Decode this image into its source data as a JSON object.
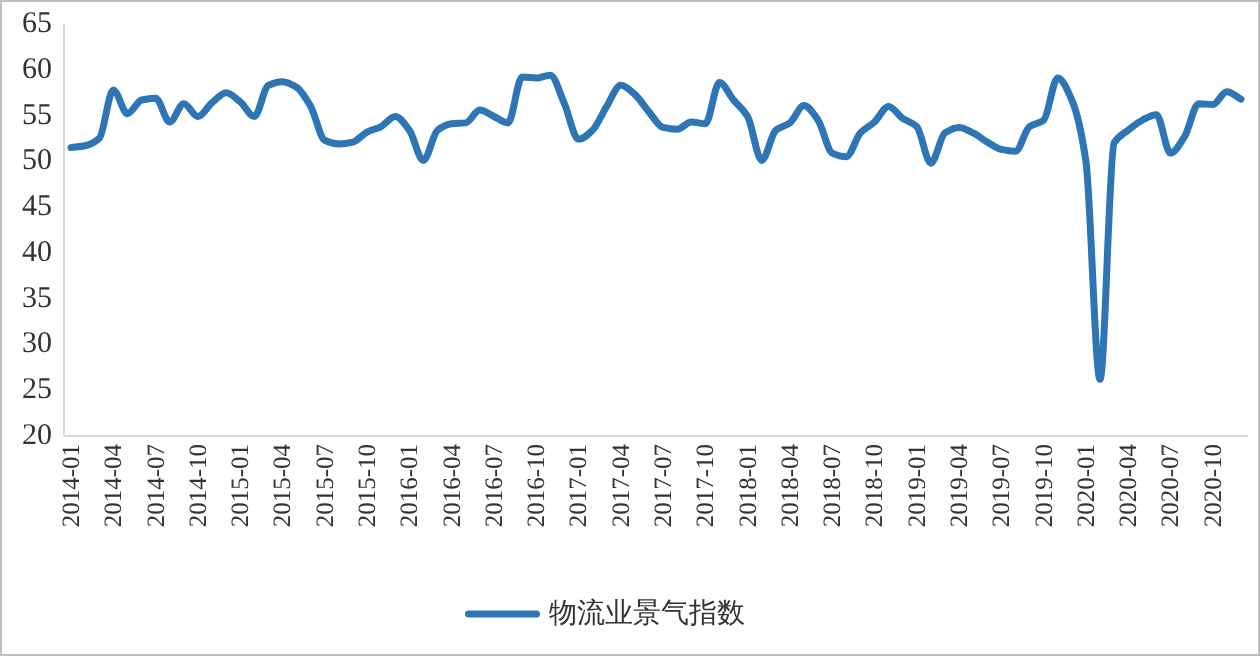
{
  "chart_data": {
    "type": "line",
    "categories": [
      "2014-01",
      null,
      null,
      "2014-04",
      null,
      null,
      "2014-07",
      null,
      null,
      "2014-10",
      null,
      null,
      "2015-01",
      null,
      null,
      "2015-04",
      null,
      null,
      "2015-07",
      null,
      null,
      "2015-10",
      null,
      null,
      "2016-01",
      null,
      null,
      "2016-04",
      null,
      null,
      "2016-07",
      null,
      null,
      "2016-10",
      null,
      null,
      "2017-01",
      null,
      null,
      "2017-04",
      null,
      null,
      "2017-07",
      null,
      null,
      "2017-10",
      null,
      null,
      "2018-01",
      null,
      null,
      "2018-04",
      null,
      null,
      "2018-07",
      null,
      null,
      "2018-10",
      null,
      null,
      "2019-01",
      null,
      null,
      "2019-04",
      null,
      null,
      "2019-07",
      null,
      null,
      "2019-10",
      null,
      null,
      "2020-01",
      null,
      null,
      "2020-04",
      null,
      null,
      "2020-07",
      null,
      null,
      "2020-10",
      null,
      null
    ],
    "series": [
      {
        "name": "物流业景气指数",
        "color": "#2e75b6",
        "values": [
          51.5,
          51.7,
          52.5,
          57.8,
          55.2,
          56.7,
          56.9,
          54.3,
          56.3,
          54.9,
          56.4,
          57.5,
          56.5,
          54.9,
          58.3,
          58.7,
          58.1,
          56.0,
          52.3,
          51.9,
          52.1,
          53.2,
          53.8,
          54.9,
          53.4,
          50.1,
          53.4,
          54.1,
          54.2,
          55.6,
          54.9,
          54.2,
          59.2,
          59.1,
          59.4,
          56.3,
          52.4,
          53.4,
          56.0,
          58.3,
          57.3,
          55.4,
          53.7,
          53.5,
          54.3,
          54.1,
          58.6,
          56.7,
          54.9,
          50.1,
          53.4,
          54.2,
          56.1,
          54.5,
          50.9,
          50.5,
          53.1,
          54.3,
          56.0,
          54.7,
          53.8,
          49.8,
          53.1,
          53.7,
          53.1,
          52.1,
          51.3,
          51.1,
          53.8,
          54.5,
          59.1,
          56.7,
          50.0,
          26.2,
          52.0,
          53.4,
          54.5,
          55.1,
          50.9,
          52.7,
          56.3,
          56.2,
          57.6,
          56.8
        ]
      }
    ],
    "ylim": [
      20,
      65
    ],
    "yticks": [
      20,
      25,
      30,
      35,
      40,
      45,
      50,
      55,
      60,
      65
    ],
    "legend": "bottom",
    "grid": false
  }
}
